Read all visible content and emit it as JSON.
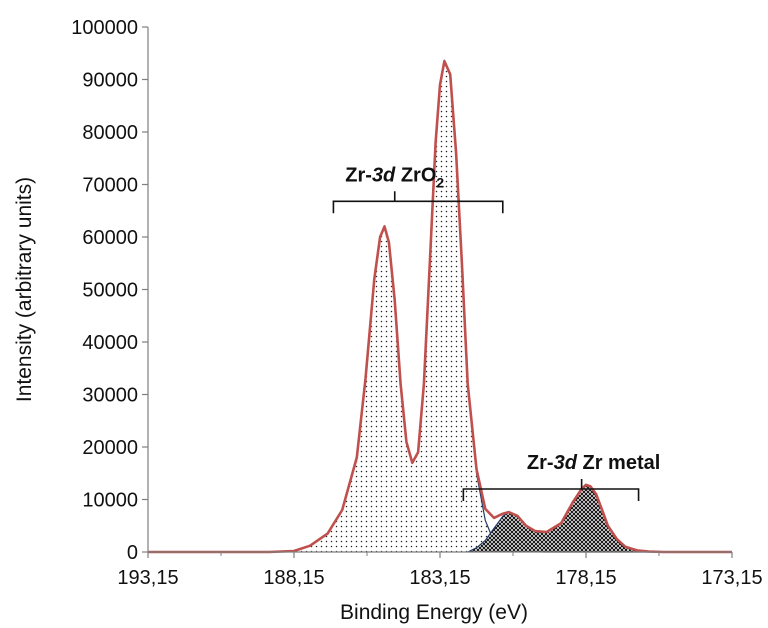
{
  "chart_data": {
    "type": "area",
    "title": "",
    "xlabel": "Binding Energy (eV)",
    "ylabel": "Intensity (arbitrary units)",
    "xlim": [
      193.15,
      173.15
    ],
    "ylim": [
      0,
      100000
    ],
    "x_reversed": true,
    "xticks": [
      193.15,
      188.15,
      183.15,
      178.15,
      173.15
    ],
    "xtick_labels": [
      "193,15",
      "188,15",
      "183,15",
      "178,15",
      "173,15"
    ],
    "yticks": [
      0,
      10000,
      20000,
      30000,
      40000,
      50000,
      60000,
      70000,
      80000,
      90000,
      100000
    ],
    "ytick_labels": [
      "0",
      "10000",
      "20000",
      "30000",
      "40000",
      "50000",
      "60000",
      "70000",
      "80000",
      "90000",
      "100000"
    ],
    "grid": false,
    "legend": "none",
    "series": [
      {
        "role": "zro2-component",
        "fill": "dotted",
        "x": [
          193.15,
          189.0,
          188.15,
          187.6,
          187.0,
          186.5,
          186.0,
          185.7,
          185.4,
          185.2,
          185.05,
          184.9,
          184.7,
          184.5,
          184.3,
          184.1,
          183.9,
          183.7,
          183.5,
          183.3,
          183.15,
          183.0,
          182.8,
          182.6,
          182.4,
          182.2,
          181.9,
          181.6,
          181.3,
          181.0,
          180.5,
          179.5,
          178.15,
          176.0,
          173.15
        ],
        "y": [
          0,
          0,
          200,
          1200,
          3500,
          8000,
          18000,
          33000,
          52000,
          60000,
          62000,
          59000,
          48000,
          32000,
          21000,
          17000,
          19000,
          32000,
          55000,
          78000,
          89000,
          93500,
          91000,
          76000,
          55000,
          32000,
          15000,
          6000,
          2000,
          500,
          100,
          0,
          0,
          0,
          0
        ]
      },
      {
        "role": "zr-metal-component",
        "fill": "crosshatch",
        "x": [
          182.2,
          181.9,
          181.6,
          181.3,
          181.0,
          180.8,
          180.5,
          180.2,
          179.9,
          179.5,
          179.0,
          178.6,
          178.3,
          178.15,
          178.0,
          177.8,
          177.6,
          177.4,
          177.1,
          176.8,
          176.4,
          176.0,
          175.5
        ],
        "y": [
          0,
          800,
          2200,
          4500,
          6800,
          7500,
          6800,
          5000,
          4000,
          3800,
          5500,
          9500,
          12000,
          12800,
          12500,
          11000,
          8000,
          5000,
          2500,
          1000,
          300,
          100,
          0
        ]
      },
      {
        "role": "envelope",
        "color": "#c0504d",
        "x": [
          193.15,
          189.0,
          188.15,
          187.6,
          187.0,
          186.5,
          186.0,
          185.7,
          185.4,
          185.2,
          185.05,
          184.9,
          184.7,
          184.5,
          184.3,
          184.1,
          183.9,
          183.7,
          183.5,
          183.3,
          183.15,
          183.0,
          182.8,
          182.6,
          182.4,
          182.2,
          181.9,
          181.6,
          181.3,
          181.0,
          180.8,
          180.5,
          180.2,
          179.9,
          179.5,
          179.0,
          178.6,
          178.3,
          178.15,
          178.0,
          177.8,
          177.6,
          177.4,
          177.1,
          176.8,
          176.4,
          176.0,
          175.5,
          173.15
        ],
        "y": [
          0,
          0,
          200,
          1200,
          3500,
          8000,
          18000,
          33000,
          52000,
          60000,
          62000,
          59000,
          48000,
          32000,
          21000,
          17000,
          19000,
          32000,
          55000,
          78000,
          89000,
          93500,
          91000,
          76000,
          55000,
          32000,
          15800,
          8200,
          6500,
          7300,
          7600,
          6900,
          5000,
          4000,
          3800,
          5500,
          9500,
          12000,
          12800,
          12500,
          11000,
          8000,
          5000,
          2500,
          1000,
          300,
          100,
          0,
          0
        ]
      }
    ],
    "annotations": [
      {
        "kind": "bracket",
        "label_prefix": "Zr-",
        "label_italic": "3d",
        "label_main": " ZrO",
        "label_sub": "2",
        "x_start": 186.8,
        "x_end": 181.0,
        "x_center": 184.7,
        "y": 66800
      },
      {
        "kind": "bracket",
        "label_prefix": "Zr-",
        "label_italic": "3d",
        "label_main": " Zr metal",
        "label_sub": "",
        "x_start": 182.35,
        "x_end": 176.35,
        "x_center": 178.3,
        "y": 12000
      }
    ],
    "colors": {
      "envelope": "#c0504d",
      "component_outline": "#1f3864",
      "axis": "#7f7f7f",
      "text": "#111111"
    }
  }
}
